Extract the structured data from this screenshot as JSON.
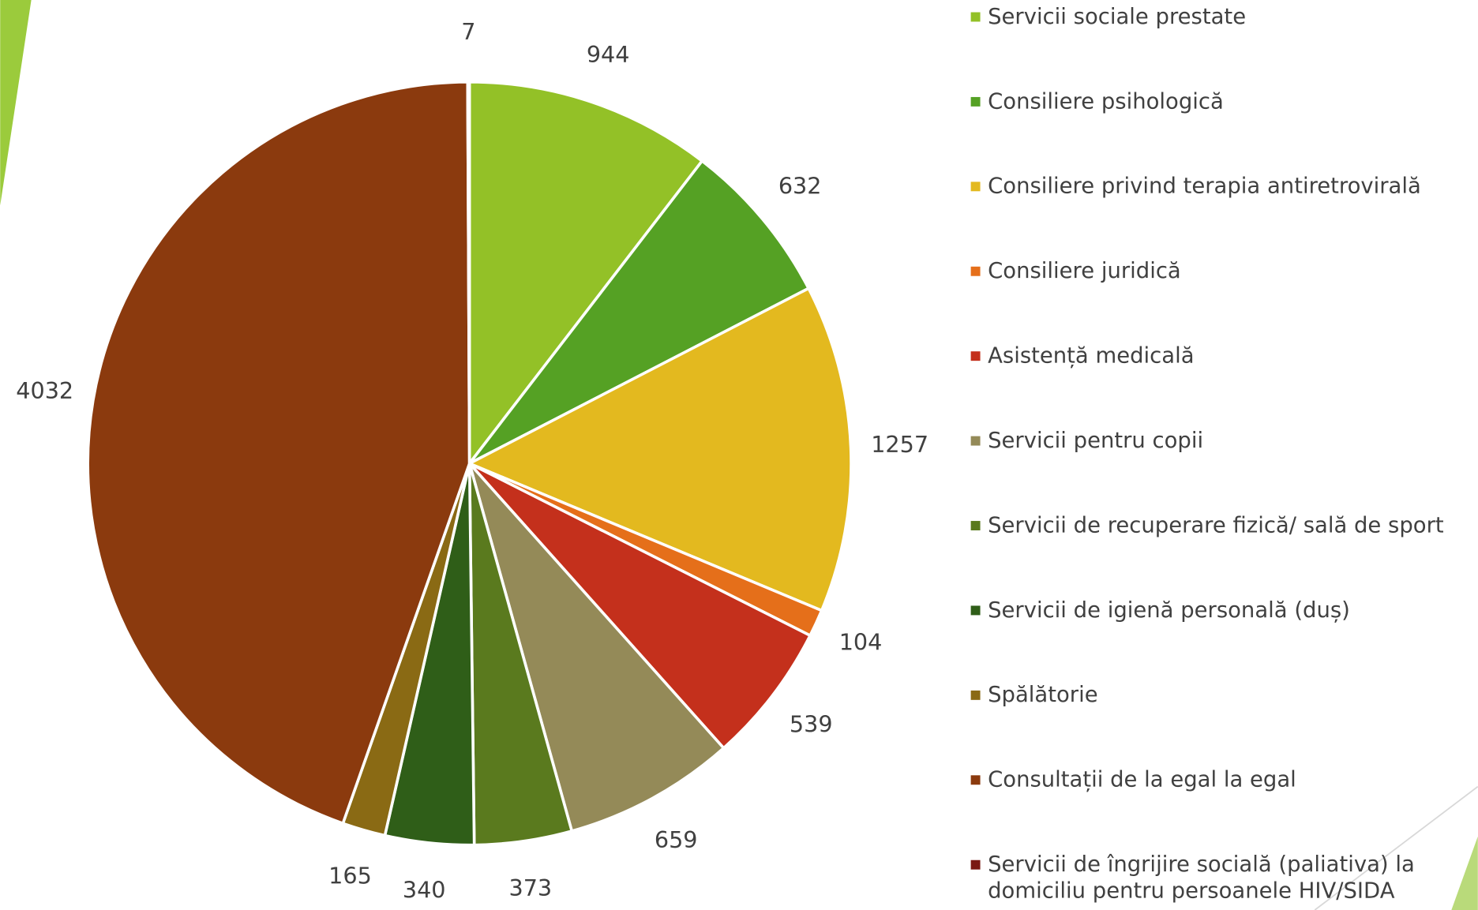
{
  "chart_data": {
    "type": "pie",
    "categories": [
      "Servicii sociale prestate",
      "Consiliere psihologică",
      "Consiliere privind terapia antiretrovirală",
      "Consiliere juridică",
      "Asistență medicală",
      "Servicii pentru copii",
      "Servicii de recuperare fizică/ sală de sport",
      "Servicii de igienă personală (duș)",
      "Spălătorie",
      "Consultații de la egal la egal",
      "Servicii de îngrijire socială (paliativa) la domiciliu pentru persoanele  HIV/SIDA"
    ],
    "values": [
      944,
      632,
      1257,
      104,
      539,
      659,
      373,
      340,
      165,
      4032,
      7
    ],
    "colors": [
      "#93c127",
      "#55a124",
      "#e3b91f",
      "#e56f1a",
      "#c4301c",
      "#948a58",
      "#5a7a1e",
      "#2f5e18",
      "#8a6a14",
      "#8b3a0e",
      "#7a1a14"
    ],
    "legend": "right"
  }
}
